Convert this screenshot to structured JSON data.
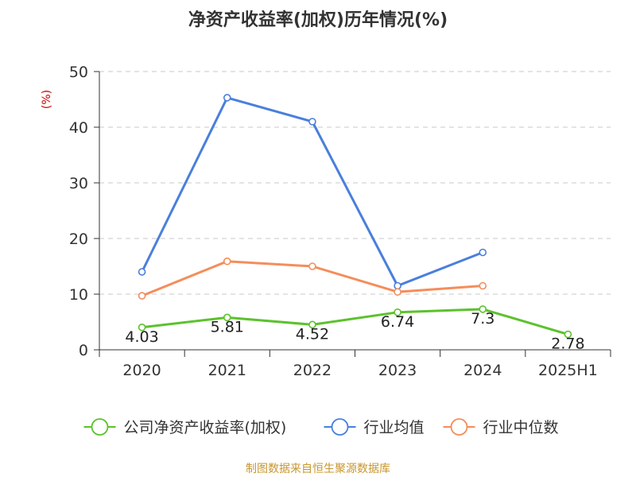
{
  "chart_data": {
    "type": "line",
    "title": "净资产收益率(加权)历年情况(%)",
    "ylabel": "(%)",
    "xlabel": "",
    "categories": [
      "2020",
      "2021",
      "2022",
      "2023",
      "2024",
      "2025H1"
    ],
    "ylim": [
      0,
      50
    ],
    "yticks": [
      0,
      10,
      20,
      30,
      40,
      50
    ],
    "grid": true,
    "legend_position": "bottom",
    "series": [
      {
        "name": "公司净资产收益率(加权)",
        "color": "#5cc22d",
        "values": [
          4.03,
          5.81,
          4.52,
          6.74,
          7.3,
          2.78
        ],
        "labels": [
          "4.03",
          "5.81",
          "4.52",
          "6.74",
          "7.3",
          "2.78"
        ]
      },
      {
        "name": "行业均值",
        "color": "#4a7fdc",
        "values": [
          14.0,
          45.3,
          41.0,
          11.5,
          17.5,
          null
        ]
      },
      {
        "name": "行业中位数",
        "color": "#f58d5a",
        "values": [
          9.7,
          15.9,
          15.0,
          10.4,
          11.5,
          null
        ]
      }
    ]
  },
  "source_text": "制图数据来自恒生聚源数据库"
}
